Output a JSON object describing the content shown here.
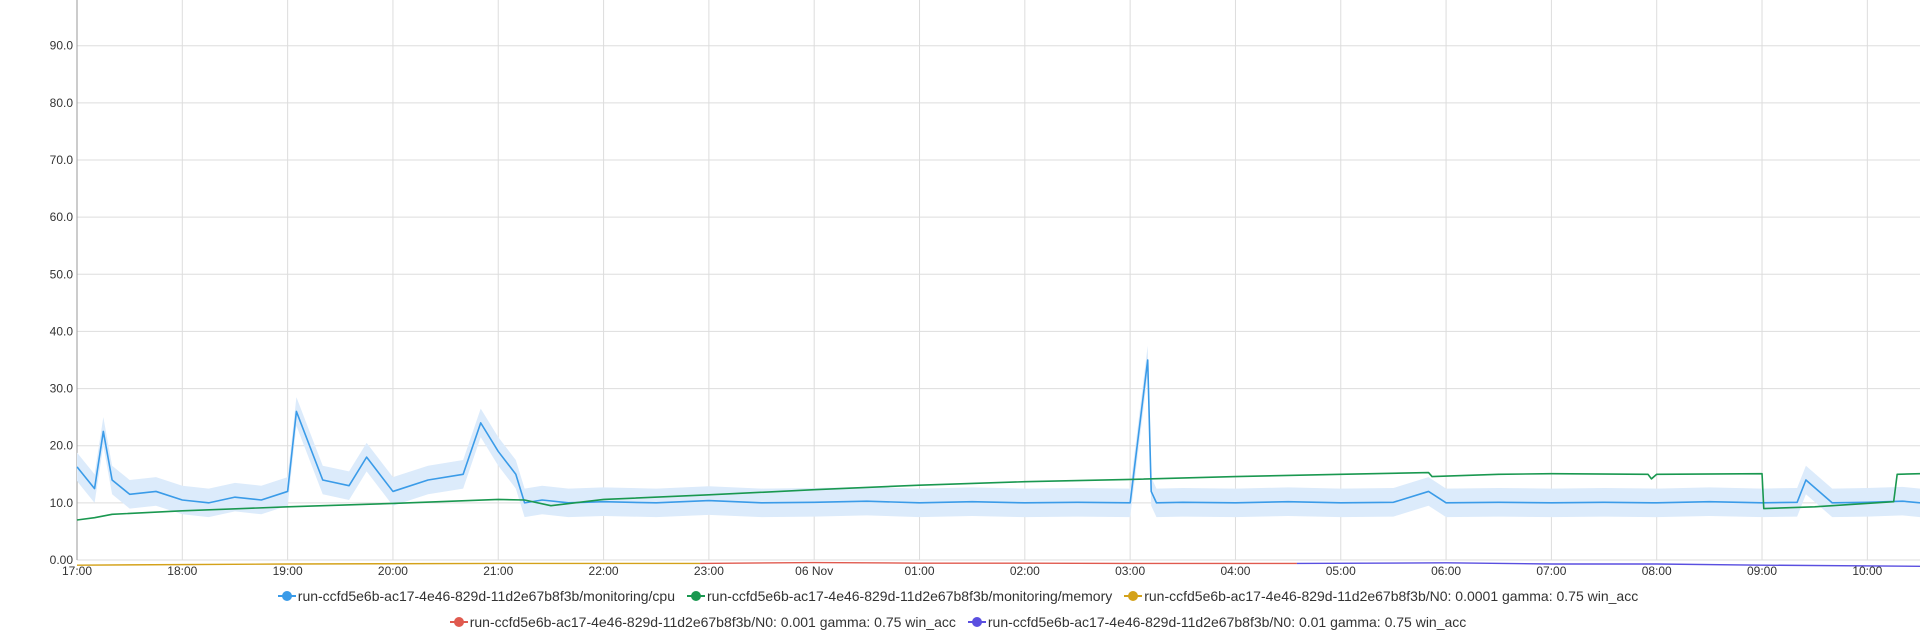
{
  "chart_data": {
    "type": "line",
    "title": "",
    "xlabel": "",
    "ylabel": "",
    "ylim": [
      0,
      98
    ],
    "x_range": [
      "2024-11-05 17:00",
      "2024-11-06 10:30"
    ],
    "y_ticks": [
      "0.00",
      "10.0",
      "20.0",
      "30.0",
      "40.0",
      "50.0",
      "60.0",
      "70.0",
      "80.0",
      "90.0"
    ],
    "x_ticks": [
      "17:00",
      "18:00",
      "19:00",
      "20:00",
      "21:00",
      "22:00",
      "23:00",
      "06 Nov",
      "01:00",
      "02:00",
      "03:00",
      "04:00",
      "05:00",
      "06:00",
      "07:00",
      "08:00",
      "09:00",
      "10:00"
    ],
    "grid": true,
    "legend_position": "bottom",
    "colors": {
      "cpu": "#3a9be8",
      "cpu_band": "#dcebfb",
      "memory": "#1a9850",
      "n0_0001": "#d4a21a",
      "n0_001": "#e05a4f",
      "n0_01": "#5a4fe0",
      "grid": "#dddddd"
    },
    "series": [
      {
        "name": "run-ccfd5e6b-ac17-4e46-829d-11d2e67b8f3b/monitoring/cpu",
        "color_key": "cpu",
        "x": [
          "17:00",
          "17:10",
          "17:15",
          "17:20",
          "17:30",
          "17:45",
          "18:00",
          "18:15",
          "18:30",
          "18:45",
          "19:00",
          "19:05",
          "19:20",
          "19:35",
          "19:45",
          "20:00",
          "20:20",
          "20:40",
          "20:50",
          "21:00",
          "21:10",
          "21:15",
          "21:25",
          "21:40",
          "22:00",
          "22:30",
          "23:00",
          "23:30",
          "00:00",
          "00:30",
          "01:00",
          "01:30",
          "02:00",
          "02:30",
          "03:00",
          "03:10",
          "03:12",
          "03:15",
          "03:30",
          "04:00",
          "04:30",
          "05:00",
          "05:30",
          "05:50",
          "06:00",
          "06:30",
          "07:00",
          "07:30",
          "08:00",
          "08:30",
          "09:00",
          "09:20",
          "09:25",
          "09:40",
          "10:00",
          "10:20",
          "10:30"
        ],
        "values": [
          16.3,
          12.5,
          22.5,
          14.0,
          11.5,
          12.0,
          10.5,
          10.0,
          11.0,
          10.5,
          12.0,
          26.0,
          14.0,
          13.0,
          18.0,
          12.0,
          14.0,
          15.0,
          24.0,
          19.0,
          15.0,
          10.0,
          10.5,
          10.0,
          10.2,
          10.0,
          10.4,
          10.0,
          10.1,
          10.3,
          10.0,
          10.2,
          10.0,
          10.1,
          10.0,
          35.0,
          12.0,
          10.0,
          10.1,
          10.0,
          10.2,
          10.0,
          10.1,
          12.0,
          10.0,
          10.1,
          10.0,
          10.1,
          10.0,
          10.2,
          10.0,
          10.1,
          14.0,
          10.0,
          10.1,
          10.3,
          10.0
        ]
      },
      {
        "name": "run-ccfd5e6b-ac17-4e46-829d-11d2e67b8f3b/monitoring/memory",
        "color_key": "memory",
        "x": [
          "17:00",
          "17:10",
          "17:20",
          "18:00",
          "19:00",
          "20:00",
          "21:00",
          "21:15",
          "21:30",
          "22:00",
          "23:00",
          "00:00",
          "01:00",
          "02:00",
          "03:00",
          "04:00",
          "05:00",
          "05:50",
          "05:52",
          "06:30",
          "07:00",
          "07:55",
          "07:57",
          "08:00",
          "09:00",
          "09:01",
          "09:30",
          "10:15",
          "10:17",
          "10:30"
        ],
        "values": [
          7.0,
          7.4,
          8.0,
          8.6,
          9.3,
          9.9,
          10.6,
          10.5,
          9.5,
          10.6,
          11.4,
          12.3,
          13.1,
          13.7,
          14.1,
          14.6,
          15.0,
          15.3,
          14.6,
          15.0,
          15.1,
          15.0,
          14.2,
          15.0,
          15.1,
          9.0,
          9.3,
          10.2,
          15.0,
          15.1
        ]
      },
      {
        "name": "run-ccfd5e6b-ac17-4e46-829d-11d2e67b8f3b/N0: 0.0001 gamma: 0.75 win_acc",
        "color_key": "n0_0001",
        "x": [
          "17:00",
          "19:00",
          "21:00",
          "22:55"
        ],
        "values": [
          -0.9,
          -0.7,
          -0.6,
          -0.6
        ]
      },
      {
        "name": "run-ccfd5e6b-ac17-4e46-829d-11d2e67b8f3b/N0: 0.001 gamma: 0.75 win_acc",
        "color_key": "n0_001",
        "x": [
          "22:55",
          "00:00",
          "01:00",
          "02:00",
          "03:00",
          "04:35"
        ],
        "values": [
          -0.6,
          -0.45,
          -0.55,
          -0.55,
          -0.6,
          -0.6
        ]
      },
      {
        "name": "run-ccfd5e6b-ac17-4e46-829d-11d2e67b8f3b/N0: 0.01 gamma: 0.75 win_acc",
        "color_key": "n0_01",
        "x": [
          "04:35",
          "06:00",
          "07:00",
          "08:00",
          "09:00",
          "10:30"
        ],
        "values": [
          -0.6,
          -0.5,
          -0.7,
          -0.7,
          -0.9,
          -1.1
        ]
      }
    ]
  }
}
